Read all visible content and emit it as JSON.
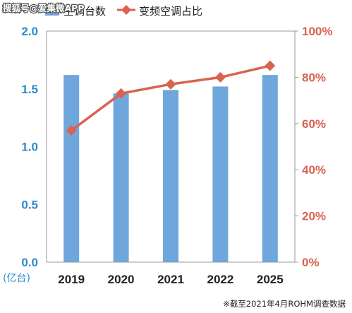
{
  "watermark": "搜狐号@爱集微APP",
  "chart_data": {
    "type": "bar",
    "categories": [
      "2019",
      "2020",
      "2021",
      "2022",
      "2025"
    ],
    "series": [
      {
        "name": "空调台数",
        "type": "bar",
        "axis": "left",
        "color": "#6fa6dc",
        "values": [
          1.62,
          1.46,
          1.49,
          1.52,
          1.62
        ]
      },
      {
        "name": "变频空调占比",
        "type": "line",
        "axis": "right",
        "color": "#d9634f",
        "values": [
          57,
          73,
          77,
          80,
          85
        ]
      }
    ],
    "y_left": {
      "unit_label": "(亿台)",
      "range": [
        0,
        2.0
      ],
      "ticks": [
        "0.0",
        "0.5",
        "1.0",
        "1.5",
        "2.0"
      ]
    },
    "y_right": {
      "range": [
        0,
        100
      ],
      "ticks": [
        "0%",
        "20%",
        "40%",
        "60%",
        "80%",
        "100%"
      ]
    },
    "legend": {
      "position": "top"
    },
    "grid": false,
    "note": "※截至2021年4月ROHM调查数据"
  }
}
